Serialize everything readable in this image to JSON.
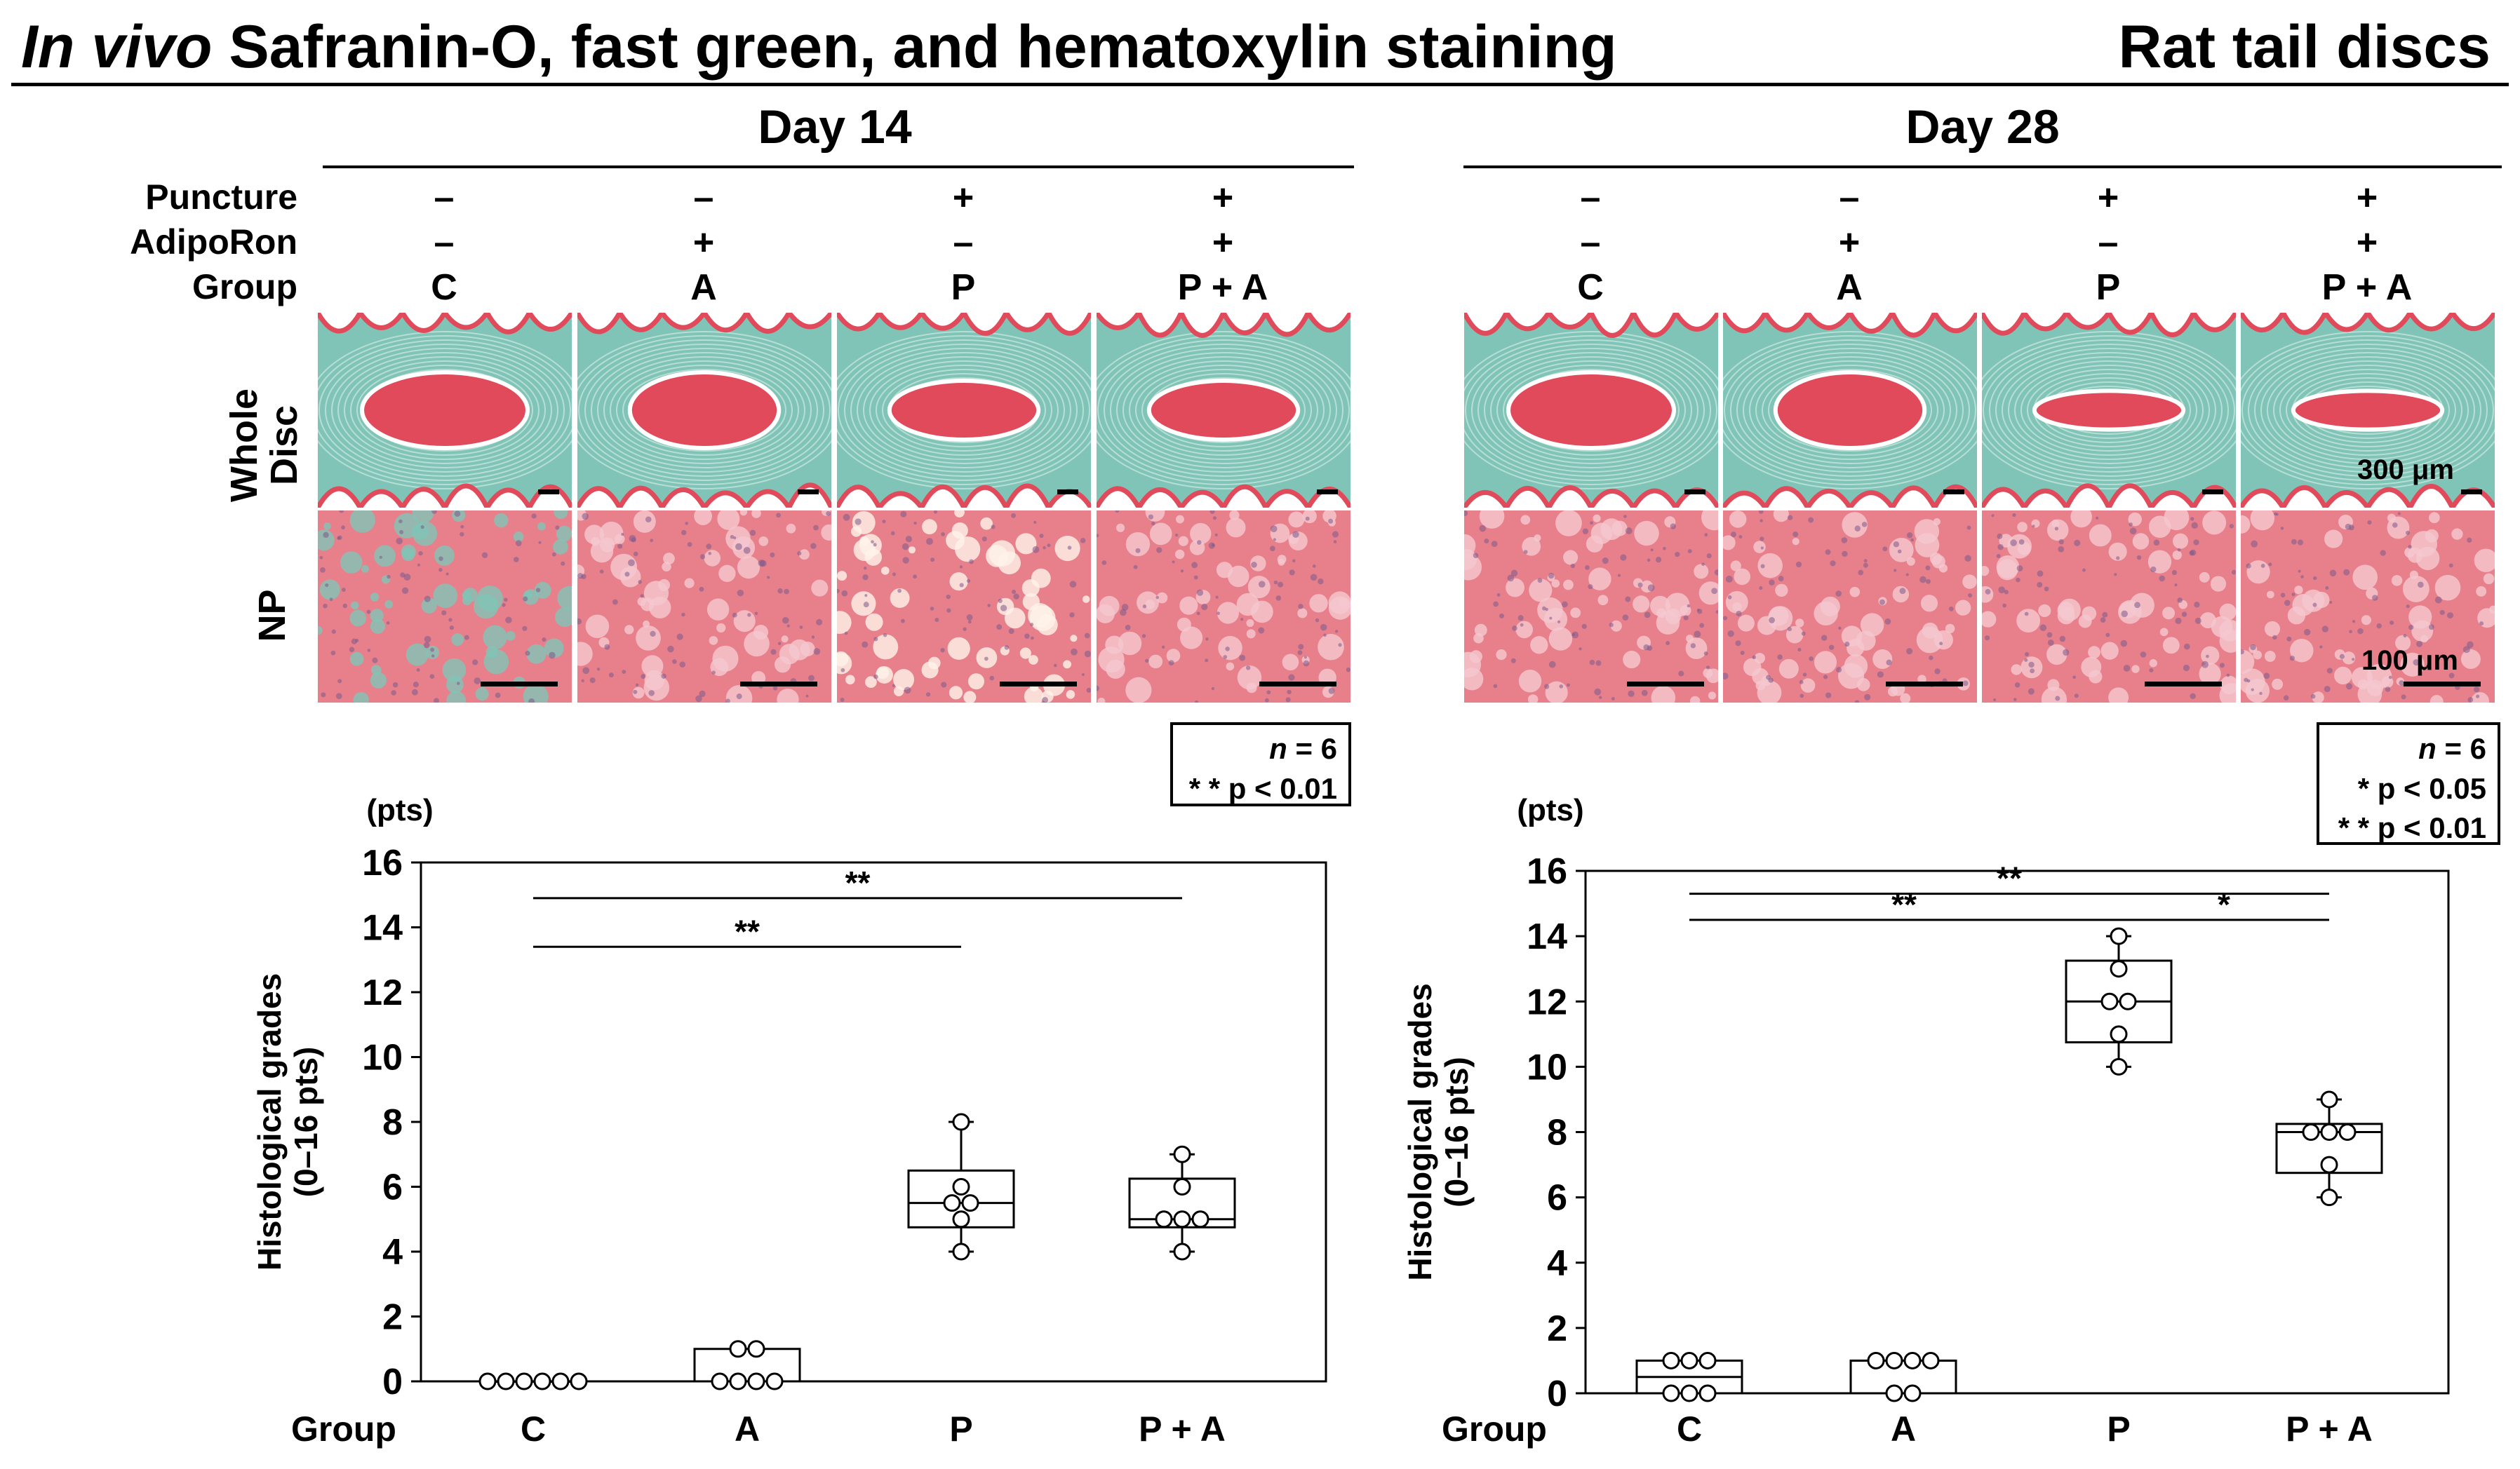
{
  "figure": {
    "title_italic": "In vivo",
    "title_rest": "Safranin-O, fast green, and hematoxylin staining",
    "right_title": "Rat tail discs"
  },
  "panels": [
    {
      "day": "Day 14",
      "row_labels": {
        "puncture": "Puncture",
        "adiporon": "AdipoRon",
        "group": "Group"
      },
      "columns": [
        {
          "puncture": "–",
          "adiporon": "–",
          "group": "C"
        },
        {
          "puncture": "–",
          "adiporon": "+",
          "group": "A"
        },
        {
          "puncture": "+",
          "adiporon": "–",
          "group": "P"
        },
        {
          "puncture": "+",
          "adiporon": "+",
          "group": "P + A"
        }
      ],
      "side_labels": {
        "whole": "Whole\nDisc",
        "np": "NP"
      },
      "scalebar_whole": "",
      "scalebar_np": "",
      "stats": {
        "n": "n",
        "n_value": "= 6",
        "lines": [
          "* * p < 0.01"
        ]
      },
      "chart_unit": "(pts)",
      "chart_ylabel_1": "Histological grades",
      "chart_ylabel_2": "(0–16 pts)",
      "chart_xlabel": "Group"
    },
    {
      "day": "Day 28",
      "row_labels": {
        "puncture": "",
        "adiporon": "",
        "group": ""
      },
      "columns": [
        {
          "puncture": "–",
          "adiporon": "–",
          "group": "C"
        },
        {
          "puncture": "–",
          "adiporon": "+",
          "group": "A"
        },
        {
          "puncture": "+",
          "adiporon": "–",
          "group": "P"
        },
        {
          "puncture": "+",
          "adiporon": "+",
          "group": "P + A"
        }
      ],
      "side_labels": {
        "whole": "",
        "np": ""
      },
      "scalebar_whole": "300 μm",
      "scalebar_np": "100 μm",
      "stats": {
        "n": "n",
        "n_value": "= 6",
        "lines": [
          "*  p < 0.05",
          "* * p < 0.01"
        ]
      },
      "chart_unit": "(pts)",
      "chart_ylabel_1": "Histological grades",
      "chart_ylabel_2": "(0–16 pts)",
      "chart_xlabel": "Group"
    }
  ],
  "colors": {
    "tissue_red": "#e04a5a",
    "matrix_pink": "#eea3ad",
    "fast_green": "#7fc4b6",
    "np_pink": "#e8808c"
  },
  "chart_data": [
    {
      "type": "box",
      "title": "Day 14",
      "xlabel": "Group",
      "ylabel": "Histological grades (0–16 pts)",
      "unit": "(pts)",
      "categories": [
        "C",
        "A",
        "P",
        "P + A"
      ],
      "ylim": [
        0,
        16
      ],
      "yticks": [
        0,
        2,
        4,
        6,
        8,
        10,
        12,
        14,
        16
      ],
      "points": [
        [
          0,
          0,
          0,
          0,
          0,
          0
        ],
        [
          0,
          0,
          0,
          0,
          1,
          1
        ],
        [
          4,
          5,
          5.5,
          5.5,
          6,
          8
        ],
        [
          4,
          5,
          5,
          5,
          6,
          7
        ]
      ],
      "boxes": [
        {
          "q1": 0,
          "median": 0,
          "q3": 0,
          "min": 0,
          "max": 0
        },
        {
          "q1": 0,
          "median": 0,
          "q3": 1,
          "min": 0,
          "max": 1
        },
        {
          "q1": 4.75,
          "median": 5.5,
          "q3": 6.5,
          "min": 4,
          "max": 8
        },
        {
          "q1": 4.75,
          "median": 5,
          "q3": 6.25,
          "min": 4,
          "max": 7
        }
      ],
      "significance": [
        {
          "from": 0,
          "to": 3,
          "label": "**",
          "y": 14.9
        },
        {
          "from": 0,
          "to": 2,
          "label": "**",
          "y": 13.4
        }
      ]
    },
    {
      "type": "box",
      "title": "Day 28",
      "xlabel": "Group",
      "ylabel": "Histological grades (0–16 pts)",
      "unit": "(pts)",
      "categories": [
        "C",
        "A",
        "P",
        "P + A"
      ],
      "ylim": [
        0,
        16
      ],
      "yticks": [
        0,
        2,
        4,
        6,
        8,
        10,
        12,
        14,
        16
      ],
      "points": [
        [
          0,
          0,
          0,
          1,
          1,
          1
        ],
        [
          0,
          0,
          1,
          1,
          1,
          1
        ],
        [
          10,
          11,
          12,
          12,
          13,
          14
        ],
        [
          6,
          7,
          8,
          8,
          8,
          9
        ]
      ],
      "boxes": [
        {
          "q1": 0,
          "median": 0.5,
          "q3": 1,
          "min": 0,
          "max": 1
        },
        {
          "q1": 0,
          "median": 1,
          "q3": 1,
          "min": 0,
          "max": 1
        },
        {
          "q1": 10.75,
          "median": 12,
          "q3": 13.25,
          "min": 10,
          "max": 14
        },
        {
          "q1": 6.75,
          "median": 8,
          "q3": 8.25,
          "min": 6,
          "max": 9
        }
      ],
      "significance": [
        {
          "from": 0,
          "to": 3,
          "label": "**",
          "y": 15.3
        },
        {
          "from": 0,
          "to": 2,
          "label": "**",
          "y": 14.5
        },
        {
          "from": 2,
          "to": 3,
          "label": "*",
          "y": 14.5
        }
      ]
    }
  ]
}
